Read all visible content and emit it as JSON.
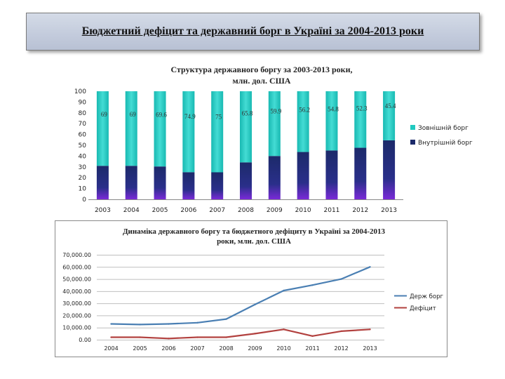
{
  "slide_title": "Бюджетний дефіцит та державний борг в Україні за 2004-2013 роки",
  "colors": {
    "external": "#20c9c0",
    "internal": "#1c2a6a",
    "debt_line": "#4a7fb3",
    "deficit_line": "#b2413f"
  },
  "chart_data": [
    {
      "type": "bar",
      "stacked": true,
      "title": "Структура державного боргу за 2003-2013 роки, млн. дол. США",
      "categories": [
        "2003",
        "2004",
        "2005",
        "2006",
        "2007",
        "2008",
        "2009",
        "2010",
        "2011",
        "2012",
        "2013"
      ],
      "series": [
        {
          "name": "Внутрішній борг",
          "values": [
            31,
            31,
            30.4,
            25.1,
            25,
            34.2,
            40.1,
            43.8,
            45.2,
            47.7,
            54.6
          ]
        },
        {
          "name": "Зовнішній борг",
          "values": [
            69,
            69,
            69.6,
            74.9,
            75,
            65.8,
            59.9,
            56.2,
            54.8,
            52.3,
            45.4
          ]
        }
      ],
      "data_labels": [
        "69",
        "69",
        "69.6",
        "74.9",
        "75",
        "65.8",
        "59.9",
        "56.2",
        "54.8",
        "52.3",
        "45.4"
      ],
      "y_ticks": [
        "0",
        "10",
        "20",
        "30",
        "40",
        "50",
        "60",
        "70",
        "80",
        "90",
        "100"
      ],
      "ylim": [
        0,
        100
      ],
      "legend": "right"
    },
    {
      "type": "line",
      "title": "Динаміка державного боргу та бюджетного дефіциту в Україні за 2004-2013 роки, млн. дол. США",
      "categories": [
        "2004",
        "2005",
        "2006",
        "2007",
        "2008",
        "2009",
        "2010",
        "2011",
        "2012",
        "2013"
      ],
      "series": [
        {
          "name": "Держ борг",
          "values": [
            13000,
            12500,
            13000,
            14000,
            17000,
            29000,
            40500,
            45000,
            50000,
            60000
          ]
        },
        {
          "name": "Дефіцит",
          "values": [
            2000,
            2000,
            1000,
            2000,
            2000,
            5000,
            8500,
            3000,
            7000,
            8500
          ]
        }
      ],
      "y_ticks": [
        "0.00",
        "10,000.00",
        "20,000.00",
        "30,000.00",
        "40,000.00",
        "50,000.00",
        "60,000.00",
        "70,000.00"
      ],
      "ylim": [
        0,
        70000
      ],
      "legend": "right"
    }
  ]
}
